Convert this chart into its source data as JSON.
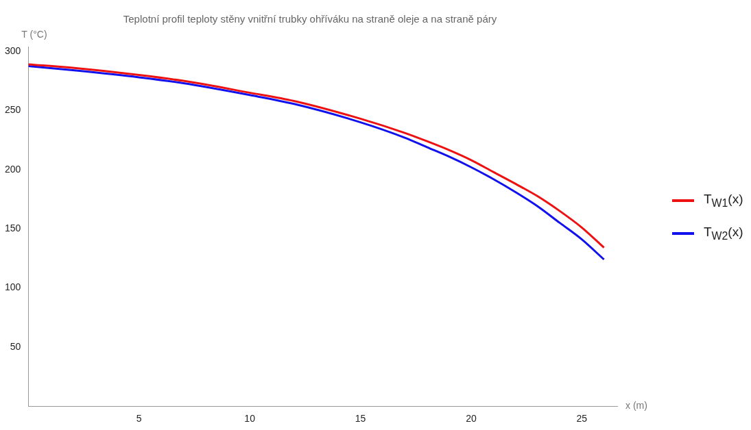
{
  "chart_data": {
    "type": "line",
    "title": "Teplotní profil teploty stěny vnitřní trubky ohříváku na straně oleje a na straně páry",
    "xlabel": "x (m)",
    "ylabel": "T (°C)",
    "x": [
      0,
      2,
      5,
      7,
      10,
      12,
      15,
      17,
      18,
      19,
      20,
      21,
      22,
      23,
      24,
      25,
      26
    ],
    "series": [
      {
        "name": "T$_{W1}$(x)",
        "color": "#ee1111",
        "values": [
          289,
          286,
          280,
          275,
          265,
          258,
          243,
          231,
          224,
          216.5,
          208,
          198,
          188,
          177.5,
          165,
          151,
          134
        ]
      },
      {
        "name": "T$_{W2}$(x)",
        "color": "#1111ee",
        "values": [
          287.5,
          284,
          278,
          273,
          263,
          255.5,
          240,
          227,
          219,
          211,
          202,
          192,
          181,
          169,
          155,
          141,
          124
        ]
      }
    ],
    "xlim": [
      0,
      26.6
    ],
    "ylim": [
      0,
      304
    ],
    "xticks": [
      5,
      10,
      15,
      20,
      25
    ],
    "yticks": [
      50,
      100,
      150,
      200,
      250,
      300
    ],
    "grid": false,
    "legend": "right",
    "marker": "none",
    "line_style": "solid"
  }
}
